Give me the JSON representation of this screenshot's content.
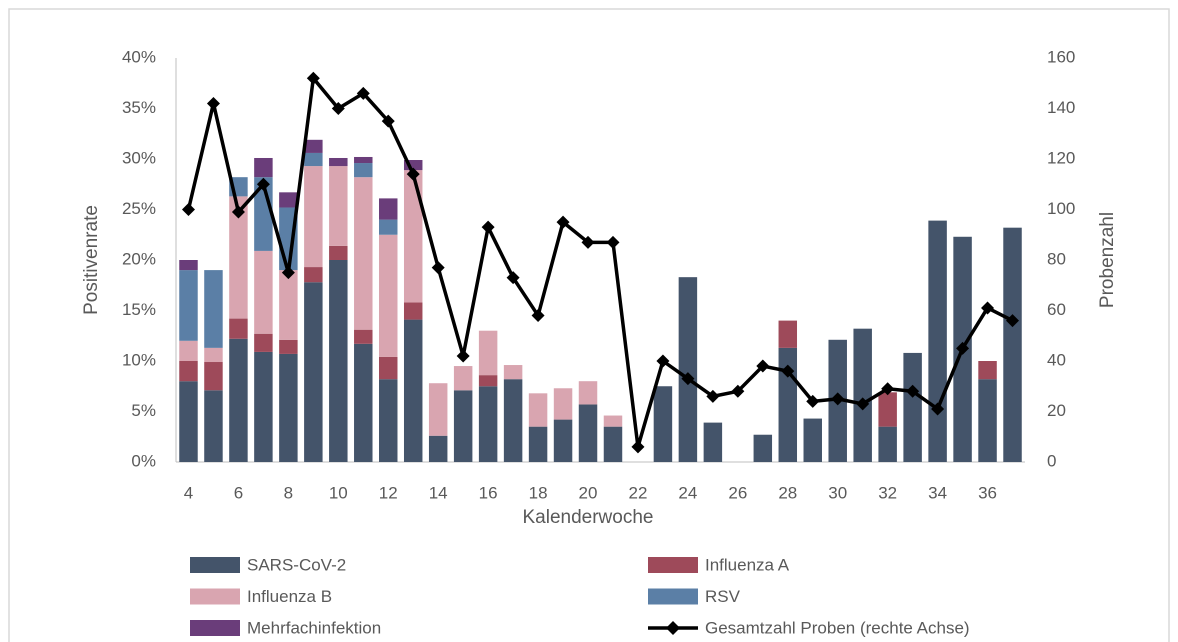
{
  "chart_data": {
    "type": "bar",
    "stacked": true,
    "x_label": "Kalenderwoche",
    "y_label": "Positivenrate",
    "y2_label": "Probenzahl",
    "categories": [
      4,
      null,
      6,
      null,
      8,
      null,
      10,
      null,
      12,
      null,
      14,
      null,
      16,
      null,
      18,
      null,
      20,
      null,
      22,
      null,
      24,
      null,
      26,
      null,
      28,
      null,
      30,
      null,
      32,
      null,
      34,
      null,
      36,
      null
    ],
    "ylim": [
      0,
      40
    ],
    "yticks": [
      {
        "value": 0,
        "label": "0%"
      },
      {
        "value": 5,
        "label": "5%"
      },
      {
        "value": 10,
        "label": "10%"
      },
      {
        "value": 15,
        "label": "15%"
      },
      {
        "value": 20,
        "label": "20%"
      },
      {
        "value": 25,
        "label": "25%"
      },
      {
        "value": 30,
        "label": "30%"
      },
      {
        "value": 35,
        "label": "35%"
      },
      {
        "value": 40,
        "label": "40%"
      }
    ],
    "y2lim": [
      0,
      160
    ],
    "y2ticks": [
      0,
      20,
      40,
      60,
      80,
      100,
      120,
      140,
      160
    ],
    "grid": false,
    "legend": "bottom",
    "series": [
      {
        "name": "SARS-CoV-2",
        "color": "#44546a",
        "values": [
          8.0,
          7.1,
          12.2,
          10.9,
          10.7,
          17.8,
          20.0,
          11.7,
          8.2,
          14.1,
          2.6,
          7.1,
          7.5,
          8.2,
          3.5,
          4.2,
          5.7,
          3.5,
          0,
          7.5,
          18.3,
          3.9,
          0,
          2.7,
          11.3,
          4.3,
          12.1,
          13.2,
          3.5,
          10.8,
          23.9,
          22.3,
          8.2,
          23.2
        ]
      },
      {
        "name": "Influenza A",
        "color": "#9e4a5a",
        "values": [
          2.0,
          2.8,
          2.0,
          1.8,
          1.4,
          1.5,
          1.4,
          1.4,
          2.2,
          1.7,
          0,
          0,
          1.1,
          0,
          0,
          0,
          0,
          0,
          0,
          0,
          0,
          0,
          0,
          0,
          2.7,
          0,
          0,
          0,
          3.4,
          0,
          0,
          0,
          1.8,
          0
        ]
      },
      {
        "name": "Influenza B",
        "color": "#d9a5b0",
        "values": [
          2.0,
          1.4,
          12.1,
          8.2,
          6.9,
          10.0,
          7.9,
          15.1,
          12.1,
          13.1,
          5.2,
          2.4,
          4.4,
          1.4,
          3.3,
          3.1,
          2.3,
          1.1,
          0,
          0,
          0,
          0,
          0,
          0,
          0,
          0,
          0,
          0,
          0,
          0,
          0,
          0,
          0,
          0
        ]
      },
      {
        "name": "RSV",
        "color": "#5b7fa6",
        "values": [
          7.0,
          7.7,
          1.9,
          7.3,
          6.2,
          1.3,
          0,
          1.4,
          1.5,
          0,
          0,
          0,
          0,
          0,
          0,
          0,
          0,
          0,
          0,
          0,
          0,
          0,
          0,
          0,
          0,
          0,
          0,
          0,
          0,
          0,
          0,
          0,
          0,
          0
        ]
      },
      {
        "name": "Mehrfachinfektion",
        "color": "#6a3d7a",
        "values": [
          1.0,
          0,
          0,
          1.9,
          1.5,
          1.3,
          0.8,
          0.6,
          2.1,
          1.0,
          0,
          0,
          0,
          0,
          0,
          0,
          0,
          0,
          0,
          0,
          0,
          0,
          0,
          0,
          0,
          0,
          0,
          0,
          0,
          0,
          0,
          0,
          0,
          0
        ]
      },
      {
        "name": "Gesamtzahl Proben (rechte Achse)",
        "color": "#000000",
        "type": "line",
        "axis": "y2",
        "values": [
          100,
          142,
          99,
          110,
          75,
          152,
          140,
          146,
          135,
          114,
          77,
          42,
          93,
          73,
          58,
          95,
          87,
          87,
          6,
          40,
          33,
          26,
          28,
          38,
          36,
          24,
          25,
          23,
          29,
          28,
          21,
          45,
          61,
          56
        ]
      }
    ]
  }
}
